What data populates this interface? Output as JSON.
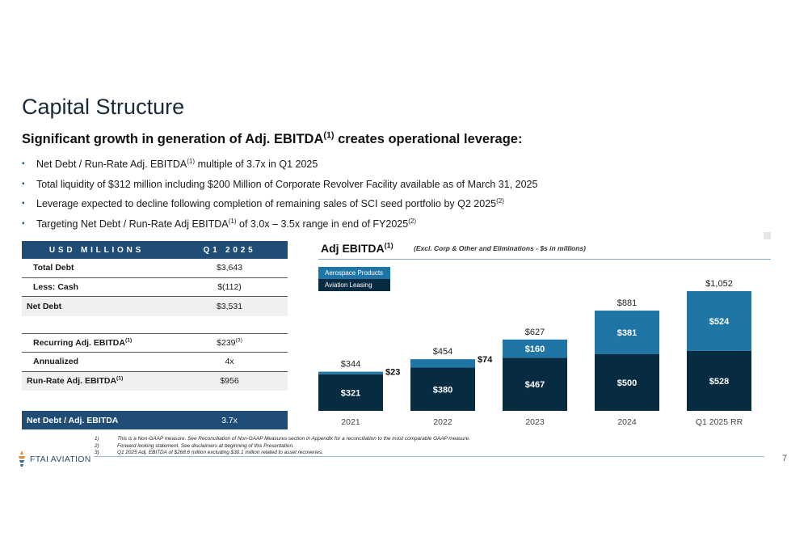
{
  "title": "Capital Structure",
  "subtitle": {
    "text": "Significant growth in generation of Adj. EBITDA",
    "sup": "(1)",
    "tail": " creates operational leverage:"
  },
  "bullets": [
    {
      "pre": "Net Debt / Run-Rate Adj. EBITDA",
      "sup": "(1)",
      "post": " multiple of 3.7x in Q1 2025"
    },
    {
      "pre": "Total liquidity of $312 million including $200 Million of Corporate Revolver Facility available as of March 31, 2025",
      "sup": "",
      "post": ""
    },
    {
      "pre": "Leverage expected to decline following completion of remaining sales of SCI seed portfolio by Q2 2025",
      "sup": "(2)",
      "post": ""
    },
    {
      "pre": "Targeting Net Debt / Run-Rate Adj EBITDA",
      "sup": "(1)",
      "post": " of 3.0x – 3.5x range in end of FY2025",
      "sup2": "(2)"
    }
  ],
  "table": {
    "header": [
      "USD MILLIONS",
      "Q1 2025"
    ],
    "rows": [
      {
        "label": "Total Debt",
        "value": "$3,643"
      },
      {
        "label": "Less: Cash",
        "value": "$(112)"
      },
      {
        "label": "Net Debt",
        "value": "$3,531"
      },
      {
        "label": "Recurring Adj. EBITDA",
        "label_sup": "(1)",
        "value": "$239",
        "value_sup": "(3)"
      },
      {
        "label": "Annualized",
        "value": "4x"
      },
      {
        "label": "Run-Rate Adj. EBITDA",
        "label_sup": "(1)",
        "value": "$956"
      }
    ],
    "footer": {
      "label": "Net Debt / Adj. EBITDA",
      "value": "3.7x"
    }
  },
  "chart_header": {
    "title": "Adj EBITDA",
    "title_sup": "(1)",
    "note": "(Excl. Corp & Other and Eliminations - $s in millions)"
  },
  "chart_data": {
    "type": "bar",
    "stacked": true,
    "categories": [
      "2021",
      "2022",
      "2023",
      "2024",
      "Q1 2025 RR"
    ],
    "series": [
      {
        "name": "Aviation Leasing",
        "values": [
          321,
          380,
          467,
          500,
          528
        ],
        "labels": [
          "$321",
          "$380",
          "$467",
          "$500",
          "$528"
        ]
      },
      {
        "name": "Aerospace Products",
        "values": [
          23,
          74,
          160,
          381,
          524
        ],
        "labels": [
          "$23",
          "$74",
          "$160",
          "$381",
          "$524"
        ]
      }
    ],
    "totals": [
      344,
      454,
      627,
      881,
      1052
    ],
    "total_labels": [
      "$344",
      "$454",
      "$627",
      "$881",
      "$1,052"
    ],
    "colors": {
      "Aviation Leasing": "#072c42",
      "Aerospace Products": "#1f76a6"
    },
    "legend": "top-left",
    "grid": false
  },
  "footnotes": [
    {
      "n": "1)",
      "text": "This is a Non-GAAP measure. See Reconciliation of Non-GAAP Measures section in Appendix for a reconciliation to the most comparable GAAP measure."
    },
    {
      "n": "2)",
      "text": "Forward looking statement. See disclaimers at beginning of this Presentation."
    },
    {
      "n": "3)",
      "text": "Q1 2025 Adj. EBITDA of $268.6 million excluding $30.1 million related to asset recoveries."
    }
  ],
  "logo": {
    "brand": "FTAI AVIATION"
  },
  "page_number": "7"
}
